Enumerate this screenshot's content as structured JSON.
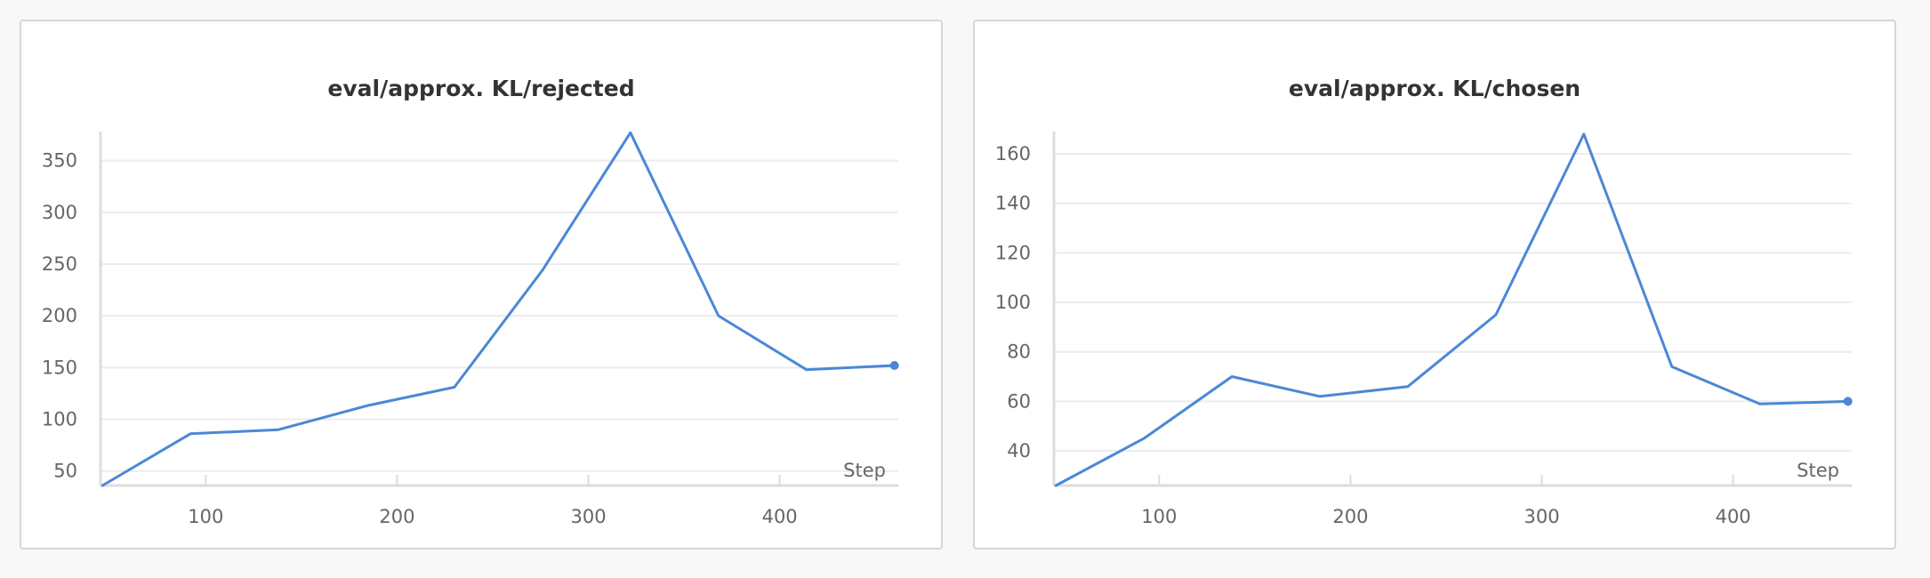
{
  "colors": {
    "line": "#4a88d6",
    "grid": "#ececec",
    "axis": "#dddddd",
    "text": "#666666",
    "title": "#333333"
  },
  "chart_data": [
    {
      "type": "line",
      "title": "eval/approx. KL/rejected",
      "xlabel": "Step",
      "ylabel": "",
      "xlim": [
        45,
        462
      ],
      "ylim": [
        36,
        378
      ],
      "xticks": [
        100,
        200,
        300,
        400
      ],
      "yticks": [
        50,
        100,
        150,
        200,
        250,
        300,
        350
      ],
      "grid": true,
      "series": [
        {
          "x": [
            46,
            92,
            138,
            184,
            230,
            276,
            322,
            368,
            414,
            460
          ],
          "y": [
            36,
            86,
            90,
            113,
            131,
            244,
            377,
            200,
            148,
            152
          ]
        }
      ]
    },
    {
      "type": "line",
      "title": "eval/approx. KL/chosen",
      "xlabel": "Step",
      "ylabel": "",
      "xlim": [
        45,
        462
      ],
      "ylim": [
        26,
        169
      ],
      "xticks": [
        100,
        200,
        300,
        400
      ],
      "yticks": [
        40,
        60,
        80,
        100,
        120,
        140,
        160
      ],
      "grid": true,
      "series": [
        {
          "x": [
            46,
            92,
            138,
            184,
            230,
            276,
            322,
            368,
            414,
            460
          ],
          "y": [
            26,
            45,
            70,
            62,
            66,
            95,
            168,
            74,
            59,
            60
          ]
        }
      ]
    }
  ]
}
